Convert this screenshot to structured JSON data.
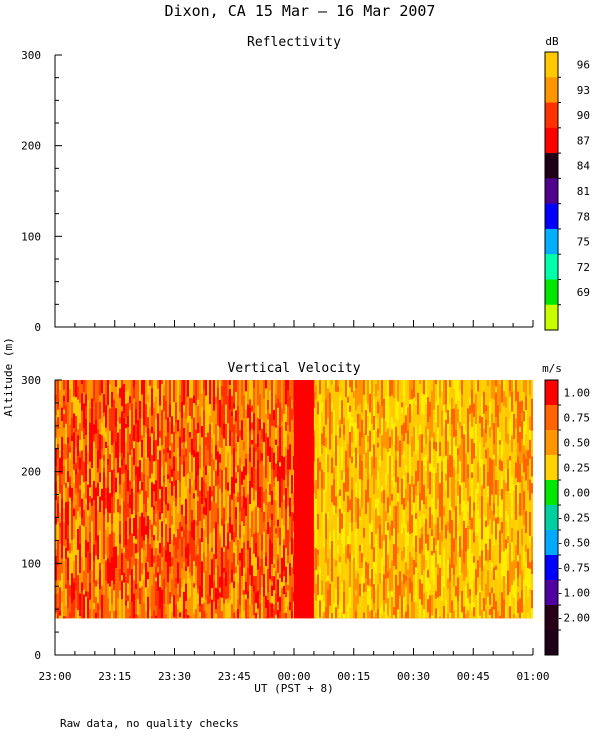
{
  "figure_title": "Dixon, CA 15 Mar — 16 Mar 2007",
  "footer_note": "Raw data, no quality checks",
  "shared_ylabel": "Altitude (m)",
  "shared_xlabel": "UT  (PST + 8)",
  "x_ticks": [
    "23:00",
    "23:15",
    "23:30",
    "23:45",
    "00:00",
    "00:15",
    "00:30",
    "00:45",
    "01:00"
  ],
  "chart_data": [
    {
      "type": "heatmap",
      "title": "Reflectivity",
      "colorbar_unit": "dB",
      "colorbar_labels": [
        "96",
        "93",
        "90",
        "87",
        "84",
        "81",
        "78",
        "75",
        "72",
        "69"
      ],
      "colorbar_colors": [
        "#ffc800",
        "#ff9600",
        "#ff3200",
        "#ff0000",
        "#200018",
        "#50008c",
        "#0000ff",
        "#00b0ff",
        "#00ffaa",
        "#00e800",
        "#c8ff00"
      ],
      "y_ticks": [
        "0",
        "100",
        "200",
        "300"
      ],
      "ylim": [
        0,
        300
      ],
      "xlim": [
        "23:00",
        "01:00"
      ],
      "values": []
    },
    {
      "type": "heatmap",
      "title": "Vertical Velocity",
      "colorbar_unit": "m/s",
      "colorbar_labels": [
        "1.00",
        "0.75",
        "0.50",
        "0.25",
        "0.00",
        "-0.25",
        "-0.50",
        "-0.75",
        "-1.00",
        "-2.00"
      ],
      "colorbar_colors": [
        "#ff0000",
        "#ff6400",
        "#ff9600",
        "#ffd200",
        "#00e800",
        "#00d0a0",
        "#00aaff",
        "#0000ff",
        "#5000a0",
        "#280018",
        "#200018"
      ],
      "y_ticks": [
        "0",
        "100",
        "200",
        "300"
      ],
      "ylim": [
        0,
        300
      ],
      "xlim": [
        "23:00",
        "01:00"
      ],
      "data_altitude_range": [
        40,
        300
      ],
      "features": [
        {
          "description": "strong upward band",
          "x_start": "00:00",
          "x_end": "00:05",
          "value": 1.0
        }
      ],
      "before_midnight_mean": 0.8,
      "after_midnight_mean": 0.5
    }
  ]
}
